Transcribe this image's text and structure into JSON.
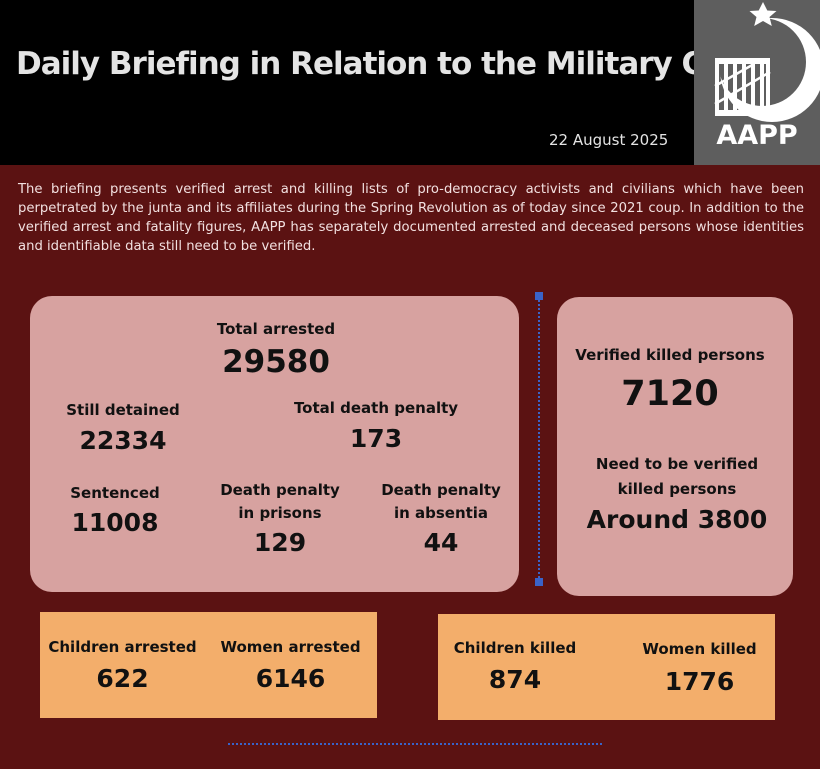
{
  "header": {
    "title": "Daily Briefing in Relation to the Military Coup",
    "date": "22 August 2025",
    "logo_text": "AAPP",
    "logo_icon": "crescent-star-prison-bars"
  },
  "intro": "The briefing presents verified arrest and killing lists of pro-democracy activists and civilians which have been perpetrated by the junta and its affiliates during the Spring Revolution as of today since 2021 coup. In addition to the verified arrest and fatality figures, AAPP has separately documented arrested and deceased persons whose identities and identifiable data still need to be verified.",
  "arrests": {
    "total_arrested_label": "Total arrested",
    "total_arrested_value": "29580",
    "still_detained_label": "Still detained",
    "still_detained_value": "22334",
    "total_death_penalty_label": "Total death penalty",
    "total_death_penalty_value": "173",
    "sentenced_label": "Sentenced",
    "sentenced_value": "11008",
    "death_penalty_prisons_label": "Death penalty\nin prisons",
    "death_penalty_prisons_value": "129",
    "death_penalty_absentia_label": "Death penalty\nin absentia",
    "death_penalty_absentia_value": "44"
  },
  "killed": {
    "verified_label": "Verified killed persons",
    "verified_value": "7120",
    "unverified_label": "Need to be verified\nkilled persons",
    "unverified_value": "Around 3800"
  },
  "arrests_demographics": {
    "children_label": "Children arrested",
    "children_value": "622",
    "women_label": "Women arrested",
    "women_value": "6146"
  },
  "killed_demographics": {
    "children_label": "Children killed",
    "children_value": "874",
    "women_label": "Women killed",
    "women_value": "1776"
  },
  "colors": {
    "background": "#5b1212",
    "header": "#000000",
    "panel": "#d7a2a0",
    "orange": "#f3ae6b",
    "logo_box": "#5e5e5e",
    "divider": "#3a63c8"
  }
}
